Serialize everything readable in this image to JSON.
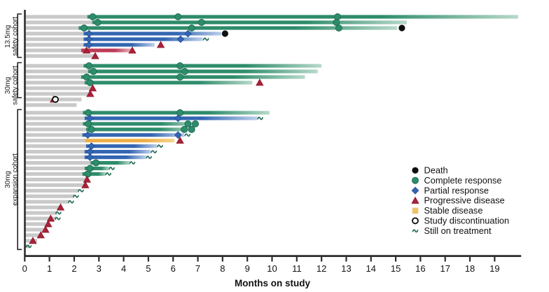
{
  "chart_data": {
    "type": "swimmer",
    "xlabel": "Months on study",
    "x_ticks": [
      0,
      1,
      2,
      3,
      4,
      5,
      6,
      7,
      8,
      9,
      10,
      11,
      12,
      13,
      14,
      15,
      16,
      17,
      18,
      19
    ],
    "xlim": [
      0,
      20.1
    ],
    "legend_position": "right-bottom",
    "legend": [
      {
        "marker": "death",
        "label": "Death"
      },
      {
        "marker": "cr",
        "label": "Complete response"
      },
      {
        "marker": "pr",
        "label": "Partial response"
      },
      {
        "marker": "pd",
        "label": "Progressive disease"
      },
      {
        "marker": "sd",
        "label": "Stable disease"
      },
      {
        "marker": "disc",
        "label": "Study discontinuation"
      },
      {
        "marker": "ontx",
        "label": "Still on treatment"
      }
    ],
    "colors": {
      "complete_response": "#2e8c6a",
      "complete_response_light": "#b7d9ca",
      "complete_response_stroke": "#1e6e53",
      "partial_response": "#3366b2",
      "partial_response_light": "#bccfe9",
      "partial_response_stroke": "#27529b",
      "progressive_disease": "#ab2138",
      "pd_bar": "#bd3a58",
      "pd_bar_light": "#e8aebb",
      "stable_disease_bar": "#eeb04a",
      "stable_disease_bar_light": "#f6d68e",
      "stable_disease_legend": "#eec26e",
      "death": "#0f0f0f",
      "no_assessment_bar": "#c9c9c9",
      "still_on_treatment": "#256d56",
      "axis": "#2e2e2e",
      "text": "#111111"
    },
    "cohorts": [
      {
        "dose": "13.5mg",
        "cohort": "safety cohort",
        "rows": [
          {
            "type": "cr",
            "start": 2.75,
            "end": 19.95,
            "fade": true,
            "markers": [
              [
                "cr",
                2.75
              ],
              [
                "cr",
                6.2
              ],
              [
                "cr",
                12.65
              ]
            ]
          },
          {
            "type": "cr",
            "start": 2.95,
            "end": 15.45,
            "fade": true,
            "markers": [
              [
                "cr",
                2.95
              ],
              [
                "cr",
                7.15
              ],
              [
                "cr",
                12.6
              ]
            ]
          },
          {
            "type": "cr",
            "start": 2.4,
            "end": 15.05,
            "fade": true,
            "markers": [
              [
                "cr",
                2.4
              ],
              [
                "cr",
                6.75
              ],
              [
                "cr",
                12.7
              ],
              [
                "death",
                15.25
              ]
            ]
          },
          {
            "type": "pr",
            "start": 2.6,
            "end": 7.95,
            "fade": true,
            "markers": [
              [
                "pr",
                2.6
              ],
              [
                "pr",
                6.6
              ],
              [
                "death",
                8.1
              ]
            ]
          },
          {
            "type": "pr",
            "start": 2.6,
            "end": 7.2,
            "fade": true,
            "markers": [
              [
                "pr",
                2.6
              ],
              [
                "pr",
                6.3
              ],
              [
                "ontx",
                7.33
              ]
            ]
          },
          {
            "type": "pr",
            "start": 2.6,
            "end": 5.25,
            "fade": true,
            "markers": [
              [
                "pr",
                2.6
              ],
              [
                "pd",
                5.5
              ]
            ]
          },
          {
            "type": "pd",
            "start": 2.5,
            "end": 4.3,
            "fade": true,
            "markers": [
              [
                "pd",
                2.5
              ],
              [
                "pd",
                4.35
              ]
            ]
          },
          {
            "type": "none",
            "start": null,
            "end": 2.8,
            "fade": false,
            "markers": [
              [
                "pd",
                2.85
              ]
            ]
          }
        ]
      },
      {
        "dose": "30mg",
        "cohort": "safety cohort",
        "rows": [
          {
            "type": "cr",
            "start": 2.6,
            "end": 12.0,
            "fade": true,
            "markers": [
              [
                "cr",
                2.6
              ],
              [
                "cr",
                6.28
              ]
            ]
          },
          {
            "type": "cr",
            "start": 2.78,
            "end": 11.85,
            "fade": true,
            "markers": [
              [
                "cr",
                2.78
              ],
              [
                "cr",
                6.47
              ]
            ]
          },
          {
            "type": "cr",
            "start": 2.5,
            "end": 11.33,
            "fade": true,
            "markers": [
              [
                "cr",
                2.5
              ],
              [
                "cr",
                6.28
              ]
            ]
          },
          {
            "type": "cr",
            "start": 2.64,
            "end": 9.2,
            "fade": true,
            "markers": [
              [
                "cr",
                2.64
              ],
              [
                "pd",
                9.5
              ]
            ]
          },
          {
            "type": "none",
            "start": null,
            "end": 2.72,
            "fade": false,
            "markers": [
              [
                "pd",
                2.75
              ]
            ]
          },
          {
            "type": "none",
            "start": null,
            "end": 2.62,
            "fade": false,
            "markers": [
              [
                "pd",
                2.65
              ]
            ]
          },
          {
            "type": "none",
            "start": null,
            "end": 2.3,
            "fade": false,
            "markers": [
              [
                "pd",
                1.17
              ],
              [
                "disc",
                1.24
              ]
            ]
          },
          {
            "type": "none",
            "start": null,
            "end": 2.1,
            "fade": false,
            "markers": []
          }
        ]
      },
      {
        "dose": "30mg",
        "cohort": "expansion cohort",
        "rows": [
          {
            "type": "cr",
            "start": 2.57,
            "end": 9.9,
            "fade": true,
            "markers": [
              [
                "cr",
                2.57
              ],
              [
                "cr",
                6.28
              ]
            ]
          },
          {
            "type": "pr",
            "start": 2.64,
            "end": 9.4,
            "fade": true,
            "markers": [
              [
                "pr",
                2.64
              ],
              [
                "pr",
                6.2
              ],
              [
                "ontx",
                9.52
              ]
            ]
          },
          {
            "type": "cr",
            "start": 2.57,
            "end": 7.0,
            "fade": true,
            "markers": [
              [
                "cr",
                2.57
              ],
              [
                "cr",
                6.6
              ],
              [
                "cr",
                6.9
              ]
            ]
          },
          {
            "type": "cr",
            "start": 2.7,
            "end": 6.85,
            "fade": true,
            "markers": [
              [
                "cr",
                2.7
              ],
              [
                "cr",
                6.45
              ],
              [
                "cr",
                6.75
              ]
            ]
          },
          {
            "type": "pr",
            "start": 2.55,
            "end": 6.45,
            "fade": true,
            "markers": [
              [
                "pr",
                2.55
              ],
              [
                "pr",
                6.2
              ],
              [
                "ontx",
                6.58
              ]
            ]
          },
          {
            "type": "sd",
            "start": 2.66,
            "end": 6.05,
            "fade": true,
            "markers": [
              [
                "pd",
                6.28
              ]
            ]
          },
          {
            "type": "pr",
            "start": 2.7,
            "end": 5.35,
            "fade": true,
            "markers": [
              [
                "pr",
                2.7
              ],
              [
                "ontx",
                5.47
              ]
            ]
          },
          {
            "type": "pr",
            "start": 2.64,
            "end": 5.1,
            "fade": true,
            "markers": [
              [
                "pr",
                2.64
              ],
              [
                "ontx",
                5.22
              ]
            ]
          },
          {
            "type": "pr",
            "start": 2.64,
            "end": 4.9,
            "fade": true,
            "markers": [
              [
                "pr",
                2.64
              ],
              [
                "ontx",
                5.02
              ]
            ]
          },
          {
            "type": "cr",
            "start": 2.88,
            "end": 4.25,
            "fade": true,
            "markers": [
              [
                "cr",
                2.88
              ],
              [
                "ontx",
                4.35
              ]
            ]
          },
          {
            "type": "cr",
            "start": 2.64,
            "end": 3.42,
            "fade": true,
            "markers": [
              [
                "cr",
                2.64
              ],
              [
                "ontx",
                3.52
              ]
            ]
          },
          {
            "type": "cr",
            "start": 2.55,
            "end": 3.28,
            "fade": true,
            "markers": [
              [
                "cr",
                2.55
              ],
              [
                "ontx",
                3.38
              ]
            ]
          },
          {
            "type": "none",
            "start": null,
            "end": 2.5,
            "fade": false,
            "markers": [
              [
                "pd",
                2.52
              ]
            ]
          },
          {
            "type": "none",
            "start": null,
            "end": 2.42,
            "fade": false,
            "markers": [
              [
                "pd",
                2.45
              ]
            ]
          },
          {
            "type": "none",
            "start": null,
            "end": 2.2,
            "fade": false,
            "markers": [
              [
                "ontx",
                2.27
              ]
            ]
          },
          {
            "type": "none",
            "start": null,
            "end": 2.0,
            "fade": false,
            "markers": [
              [
                "ontx",
                2.07
              ]
            ]
          },
          {
            "type": "none",
            "start": null,
            "end": 1.8,
            "fade": false,
            "markers": [
              [
                "ontx",
                1.87
              ]
            ]
          },
          {
            "type": "none",
            "start": null,
            "end": 1.42,
            "fade": false,
            "markers": [
              [
                "pd",
                1.45
              ]
            ]
          },
          {
            "type": "none",
            "start": null,
            "end": 1.3,
            "fade": false,
            "markers": [
              [
                "ontx",
                1.36
              ]
            ]
          },
          {
            "type": "none",
            "start": null,
            "end": 1.28,
            "fade": false,
            "markers": [
              [
                "pd",
                1.05
              ],
              [
                "ontx",
                1.33
              ]
            ]
          },
          {
            "type": "none",
            "start": null,
            "end": 1.0,
            "fade": false,
            "markers": [
              [
                "pd",
                0.95
              ]
            ]
          },
          {
            "type": "none",
            "start": null,
            "end": 0.88,
            "fade": false,
            "markers": [
              [
                "pd",
                0.84
              ]
            ]
          },
          {
            "type": "none",
            "start": null,
            "end": 0.7,
            "fade": false,
            "markers": [
              [
                "pd",
                0.65
              ]
            ]
          },
          {
            "type": "none",
            "start": null,
            "end": 0.5,
            "fade": false,
            "markers": [
              [
                "pd",
                0.33
              ]
            ]
          },
          {
            "type": "none",
            "start": null,
            "end": 0.2,
            "fade": false,
            "markers": [
              [
                "ontx",
                0.16
              ]
            ]
          }
        ]
      }
    ]
  }
}
